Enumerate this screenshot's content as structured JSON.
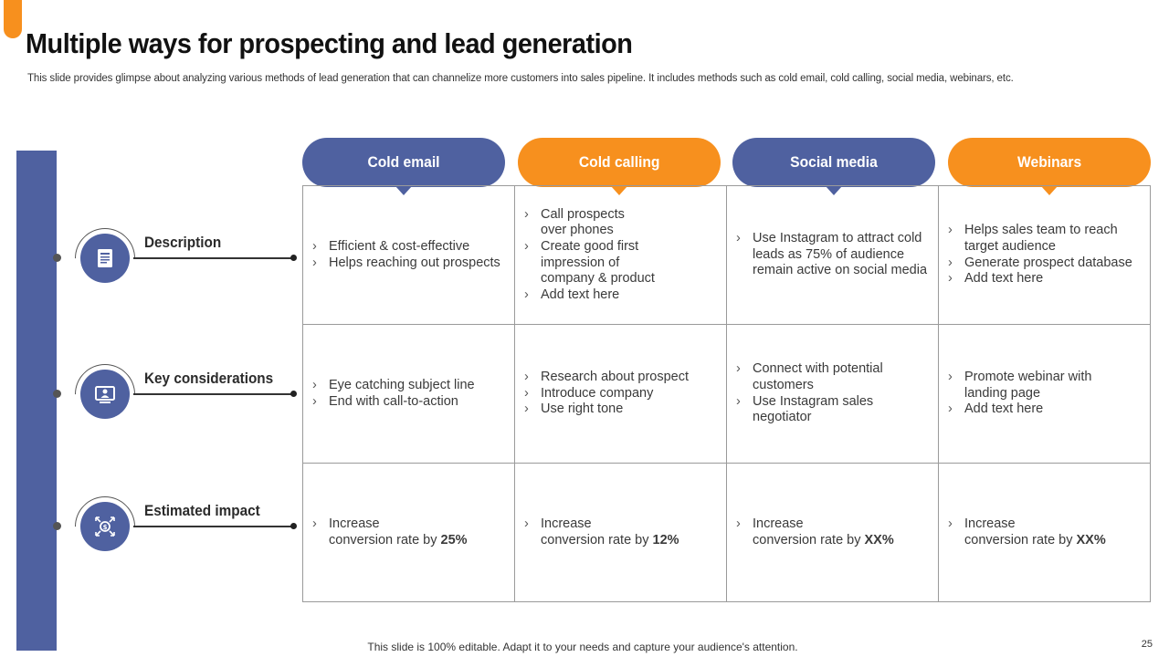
{
  "slide": {
    "title": "Multiple ways for prospecting and lead generation",
    "subtitle": "This slide provides glimpse about analyzing various methods of lead generation that can channelize more customers into sales pipeline. It includes methods such as cold email, cold calling, social media, webinars, etc.",
    "footer": "This slide is 100% editable. Adapt it to your needs and capture your audience's attention.",
    "page_number": "25"
  },
  "colors": {
    "blue": "#4f61a0",
    "orange": "#f7901e"
  },
  "columns": [
    {
      "label": "Cold email",
      "color": "blue"
    },
    {
      "label": "Cold calling",
      "color": "orange"
    },
    {
      "label": "Social media",
      "color": "blue"
    },
    {
      "label": "Webinars",
      "color": "orange"
    }
  ],
  "rows": [
    {
      "label": "Description",
      "icon": "document-icon",
      "cells": [
        [
          "Efficient & cost-effective",
          "Helps reaching out prospects"
        ],
        [
          "Call prospects over phones",
          "Create good first impression of company & product",
          "Add text here"
        ],
        [
          "Use Instagram to attract cold leads as 75% of audience remain active on social media"
        ],
        [
          "Helps sales team to reach target audience",
          "Generate prospect database",
          "Add text here"
        ]
      ]
    },
    {
      "label": "Key considerations",
      "icon": "monitor-user-icon",
      "cells": [
        [
          "Eye catching subject line",
          "End with call-to-action"
        ],
        [
          "Research about prospect",
          "Introduce company",
          "Use right tone"
        ],
        [
          "Connect with potential customers",
          "Use Instagram sales negotiator"
        ],
        [
          "Promote webinar with landing page",
          "Add text here"
        ]
      ]
    },
    {
      "label": "Estimated impact",
      "icon": "money-growth-icon",
      "cells": [
        {
          "prefix": "Increase",
          "text": "conversion rate by",
          "value": "25%"
        },
        {
          "prefix": "Increase",
          "text": "conversion rate by",
          "value": "12%"
        },
        {
          "prefix": "Increase",
          "text": "conversion rate by",
          "value": "XX%"
        },
        {
          "prefix": "Increase",
          "text": "conversion rate by",
          "value": "XX%"
        }
      ]
    }
  ]
}
